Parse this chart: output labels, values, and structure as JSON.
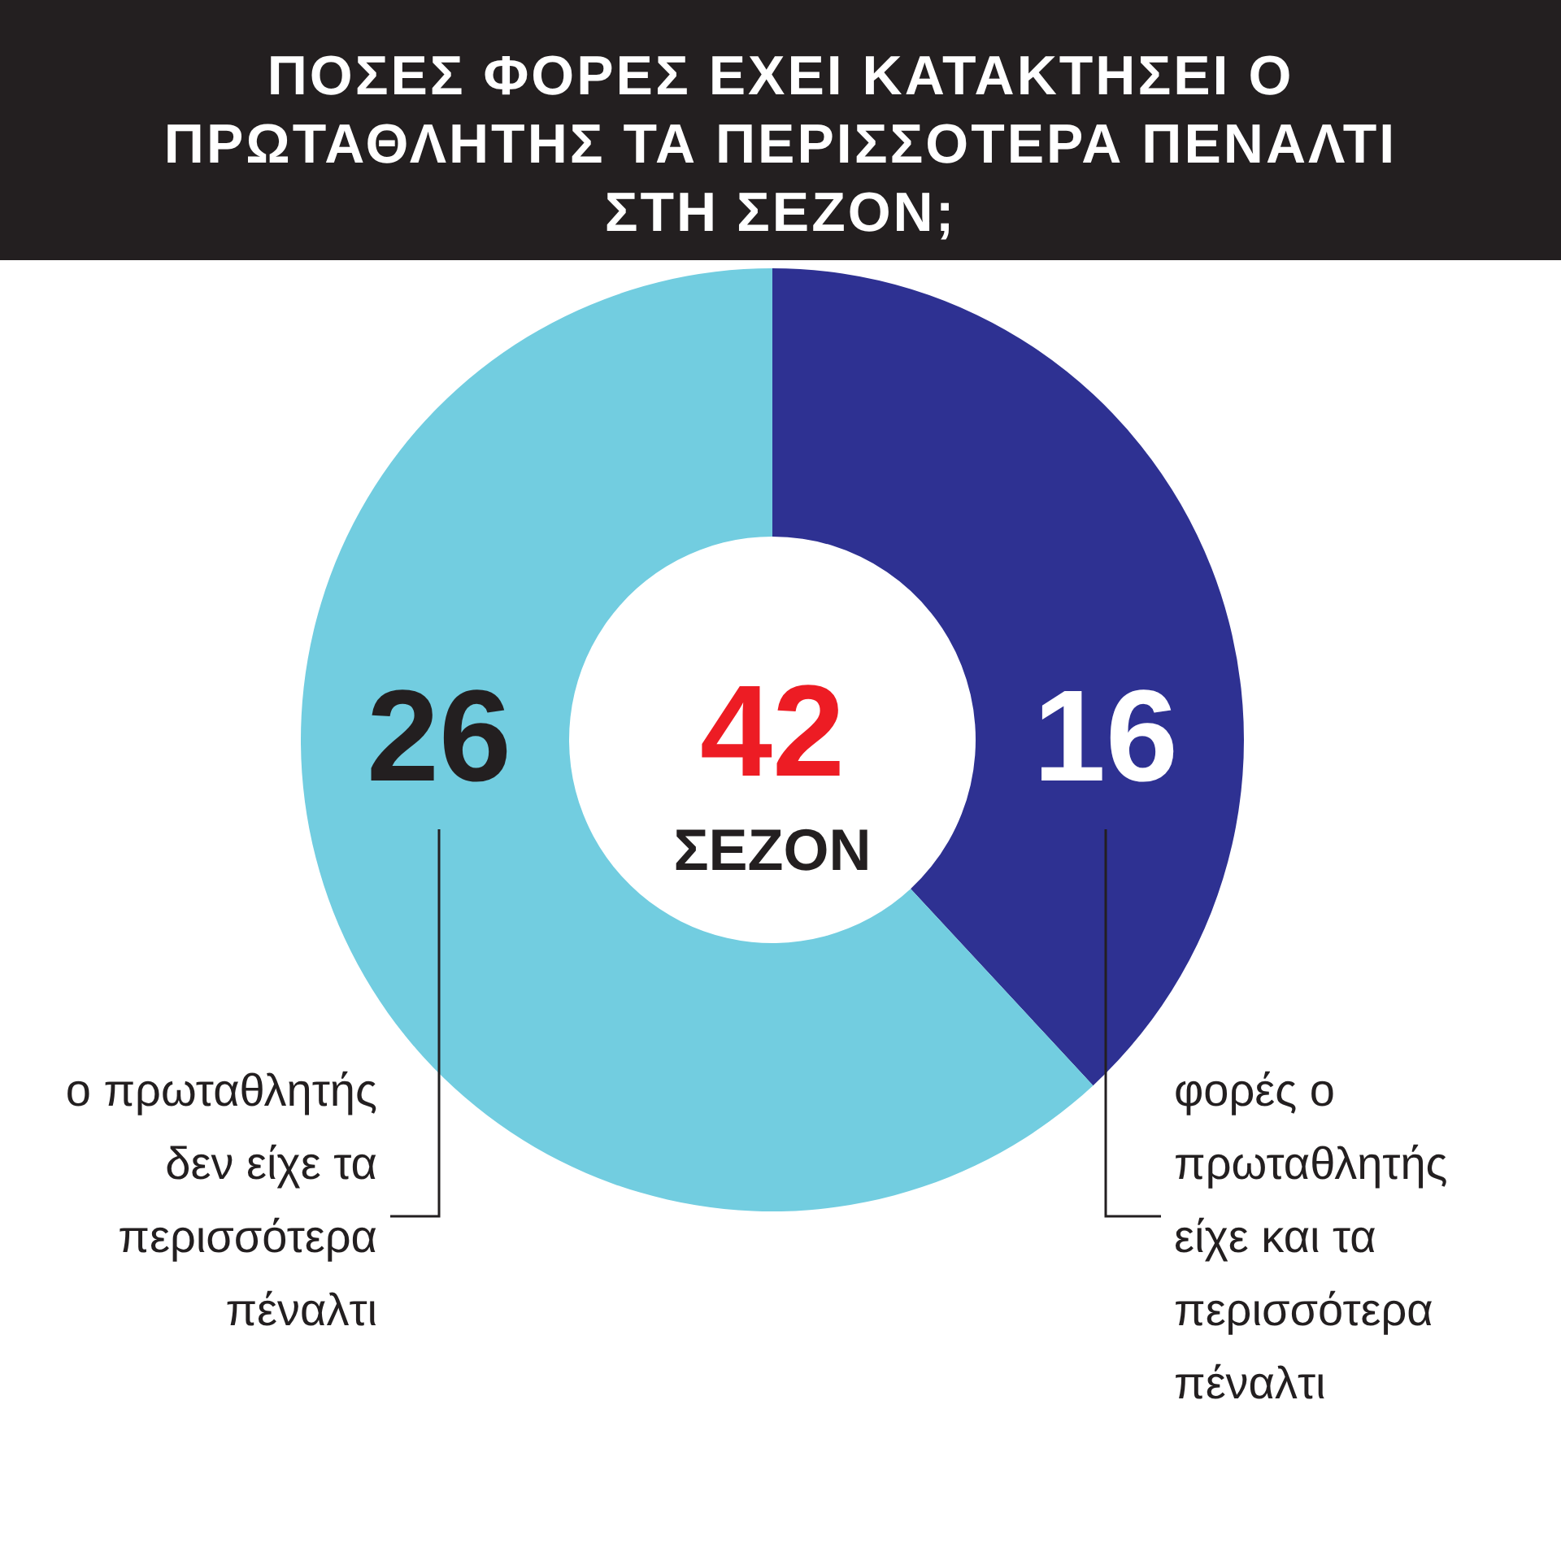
{
  "chart_data": {
    "type": "donut",
    "title": "ΠΟΣΕΣ ΦΟΡΕΣ ΕΧΕΙ ΚΑΤΑΚΤΗΣΕΙ Ο ΠΡΩΤΑΘΛΗΤΗΣ ΤΑ ΠΕΡΙΣΣΟΤΕΡΑ ΠΕΝΑΛΤΙ ΣΤΗ ΣΕΖΟΝ;",
    "categories": [
      "φορές ο πρωταθλητής είχε και τα περισσότερα πέναλτι",
      "ο πρωταθλητής δεν είχε τα περισσότερα πέναλτι"
    ],
    "values": [
      16,
      26
    ],
    "colors": [
      "#2e3192",
      "#72cde0"
    ],
    "data_labels": true,
    "annotations": [
      "42",
      "ΣΕΖΟΝ"
    ]
  }
}
